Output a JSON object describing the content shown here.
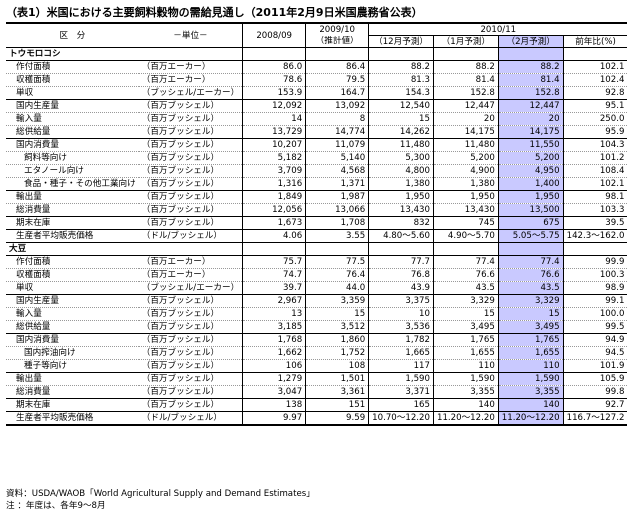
{
  "title": "（表1）米国における主要飼料穀物の需給見通し（2011年2月9日米国農務省公表）",
  "header": {
    "col_item": "区　分",
    "col_unit": "－単位－",
    "col_0809": "2008/09",
    "col_0910": "2009/10",
    "col_1011": "2010/11",
    "sub_0910": "（推計値）",
    "sub_dec": "（12月予測）",
    "sub_jan": "（1月予測）",
    "sub_feb": "（2月予測）",
    "sub_yoy": "前年比(%)"
  },
  "sections": [
    {
      "name": "トウモロコシ",
      "rows": [
        {
          "item": "作付面積",
          "unit": "（百万エーカー）",
          "v": [
            "86.0",
            "86.4",
            "88.2",
            "88.2",
            "88.2",
            "102.1"
          ]
        },
        {
          "item": "収穫面積",
          "unit": "（百万エーカー）",
          "v": [
            "78.6",
            "79.5",
            "81.3",
            "81.4",
            "81.4",
            "102.4"
          ]
        },
        {
          "item": "単収",
          "unit": "（ブッシェル/エーカー）",
          "v": [
            "153.9",
            "164.7",
            "154.3",
            "152.8",
            "152.8",
            "92.8"
          ]
        },
        {
          "item": "国内生産量",
          "unit": "（百万ブッシェル）",
          "v": [
            "12,092",
            "13,092",
            "12,540",
            "12,447",
            "12,447",
            "95.1"
          ]
        },
        {
          "item": "輸入量",
          "unit": "（百万ブッシェル）",
          "v": [
            "14",
            "8",
            "15",
            "20",
            "20",
            "250.0"
          ]
        },
        {
          "item": "総供給量",
          "unit": "（百万ブッシェル）",
          "v": [
            "13,729",
            "14,774",
            "14,262",
            "14,175",
            "14,175",
            "95.9"
          ]
        },
        {
          "item": "国内消費量",
          "unit": "（百万ブッシェル）",
          "v": [
            "10,207",
            "11,079",
            "11,480",
            "11,480",
            "11,550",
            "104.3"
          ]
        },
        {
          "item": "飼料等向け",
          "unit": "（百万ブッシェル）",
          "v": [
            "5,182",
            "5,140",
            "5,300",
            "5,200",
            "5,200",
            "101.2"
          ]
        },
        {
          "item": "エタノール向け",
          "unit": "（百万ブッシェル）",
          "v": [
            "3,709",
            "4,568",
            "4,800",
            "4,900",
            "4,950",
            "108.4"
          ]
        },
        {
          "item": "食品・種子・その他工業向け",
          "unit": "（百万ブッシェル）",
          "v": [
            "1,316",
            "1,371",
            "1,380",
            "1,380",
            "1,400",
            "102.1"
          ]
        },
        {
          "item": "輸出量",
          "unit": "（百万ブッシェル）",
          "v": [
            "1,849",
            "1,987",
            "1,950",
            "1,950",
            "1,950",
            "98.1"
          ]
        },
        {
          "item": "総消費量",
          "unit": "（百万ブッシェル）",
          "v": [
            "12,056",
            "13,066",
            "13,430",
            "13,430",
            "13,500",
            "103.3"
          ]
        },
        {
          "item": "期末在庫",
          "unit": "（百万ブッシェル）",
          "v": [
            "1,673",
            "1,708",
            "832",
            "745",
            "675",
            "39.5"
          ]
        },
        {
          "item": "生産者平均販売価格",
          "unit": "（ドル/ブッシェル）",
          "v": [
            "4.06",
            "3.55",
            "4.80～5.60",
            "4.90～5.70",
            "5.05～5.75",
            "142.3～162.0"
          ]
        }
      ]
    },
    {
      "name": "大豆",
      "rows": [
        {
          "item": "作付面積",
          "unit": "（百万エーカー）",
          "v": [
            "75.7",
            "77.5",
            "77.7",
            "77.4",
            "77.4",
            "99.9"
          ]
        },
        {
          "item": "収穫面積",
          "unit": "（百万エーカー）",
          "v": [
            "74.7",
            "76.4",
            "76.8",
            "76.6",
            "76.6",
            "100.3"
          ]
        },
        {
          "item": "単収",
          "unit": "（ブッシェル/エーカー）",
          "v": [
            "39.7",
            "44.0",
            "43.9",
            "43.5",
            "43.5",
            "98.9"
          ]
        },
        {
          "item": "国内生産量",
          "unit": "（百万ブッシェル）",
          "v": [
            "2,967",
            "3,359",
            "3,375",
            "3,329",
            "3,329",
            "99.1"
          ]
        },
        {
          "item": "輸入量",
          "unit": "（百万ブッシェル）",
          "v": [
            "13",
            "15",
            "10",
            "15",
            "15",
            "100.0"
          ]
        },
        {
          "item": "総供給量",
          "unit": "（百万ブッシェル）",
          "v": [
            "3,185",
            "3,512",
            "3,536",
            "3,495",
            "3,495",
            "99.5"
          ]
        },
        {
          "item": "国内消費量",
          "unit": "（百万ブッシェル）",
          "v": [
            "1,768",
            "1,860",
            "1,782",
            "1,765",
            "1,765",
            "94.9"
          ]
        },
        {
          "item": "国内搾油向け",
          "unit": "（百万ブッシェル）",
          "v": [
            "1,662",
            "1,752",
            "1,665",
            "1,655",
            "1,655",
            "94.5"
          ]
        },
        {
          "item": "種子等向け",
          "unit": "（百万ブッシェル）",
          "v": [
            "106",
            "108",
            "117",
            "110",
            "110",
            "101.9"
          ]
        },
        {
          "item": "輸出量",
          "unit": "（百万ブッシェル）",
          "v": [
            "1,279",
            "1,501",
            "1,590",
            "1,590",
            "1,590",
            "105.9"
          ]
        },
        {
          "item": "総消費量",
          "unit": "（百万ブッシェル）",
          "v": [
            "3,047",
            "3,361",
            "3,371",
            "3,355",
            "3,355",
            "99.8"
          ]
        },
        {
          "item": "期末在庫",
          "unit": "（百万ブッシェル）",
          "v": [
            "138",
            "151",
            "165",
            "140",
            "140",
            "92.7"
          ]
        },
        {
          "item": "生産者平均販売価格",
          "unit": "（ドル/ブッシェル）",
          "v": [
            "9.97",
            "9.59",
            "10.70～12.20",
            "11.20～12.20",
            "11.20～12.20",
            "116.7～127.2"
          ]
        }
      ]
    }
  ],
  "notes": {
    "source": "資料：USDA/WAOB「World Agricultural Supply and Demand Estimates」",
    "note": "注 ：年度は、各年9～8月"
  }
}
